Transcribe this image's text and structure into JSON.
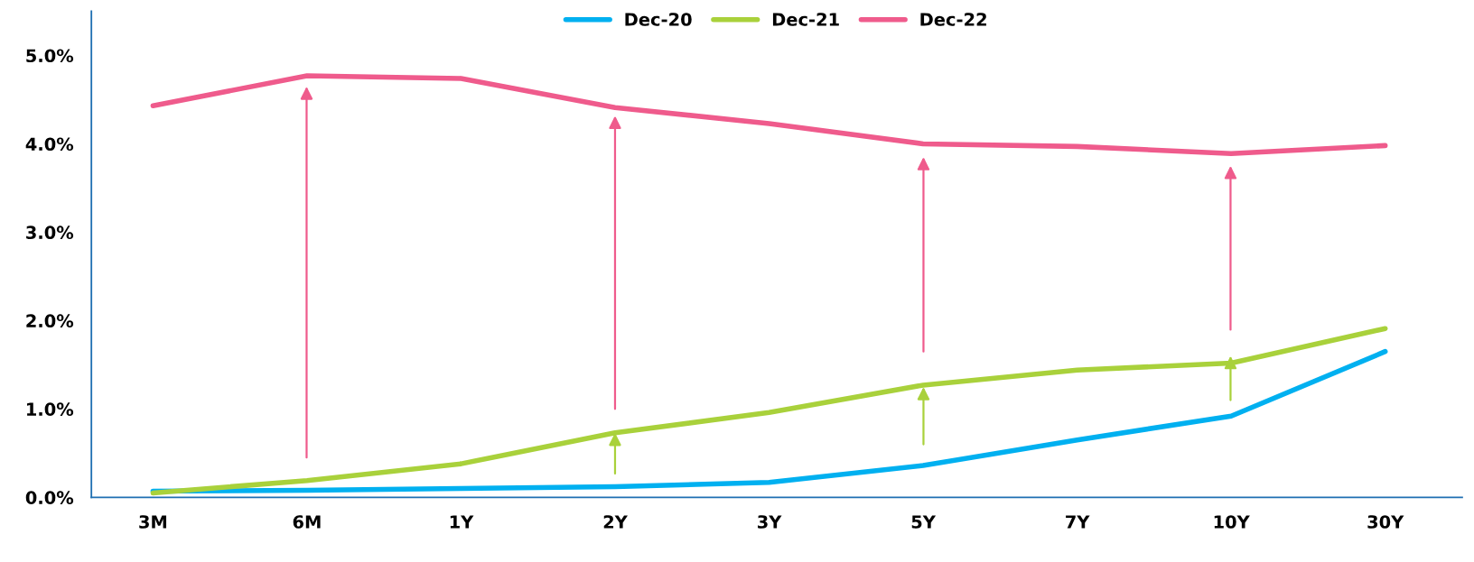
{
  "chart_data": {
    "type": "line",
    "categories": [
      "3M",
      "6M",
      "1Y",
      "2Y",
      "3Y",
      "5Y",
      "7Y",
      "10Y",
      "30Y"
    ],
    "series": [
      {
        "name": "Dec-20",
        "color": "#00b0f0",
        "values": [
          0.07,
          0.08,
          0.1,
          0.12,
          0.17,
          0.36,
          0.65,
          0.92,
          1.65
        ]
      },
      {
        "name": "Dec-21",
        "color": "#a9d13b",
        "values": [
          0.05,
          0.19,
          0.38,
          0.73,
          0.96,
          1.27,
          1.44,
          1.52,
          1.91
        ]
      },
      {
        "name": "Dec-22",
        "color": "#ef5b8c",
        "values": [
          4.43,
          4.77,
          4.74,
          4.41,
          4.23,
          4.0,
          3.97,
          3.89,
          3.98
        ]
      }
    ],
    "ylim": [
      0,
      5.5
    ],
    "yticks": [
      {
        "value": 0,
        "label": "0.0%"
      },
      {
        "value": 1,
        "label": "1.0%"
      },
      {
        "value": 2,
        "label": "2.0%"
      },
      {
        "value": 3,
        "label": "3.0%"
      },
      {
        "value": 4,
        "label": "4.0%"
      },
      {
        "value": 5,
        "label": "5.0%"
      }
    ],
    "legend": "top",
    "grid": false,
    "marker": "none",
    "line_style": "solid"
  }
}
